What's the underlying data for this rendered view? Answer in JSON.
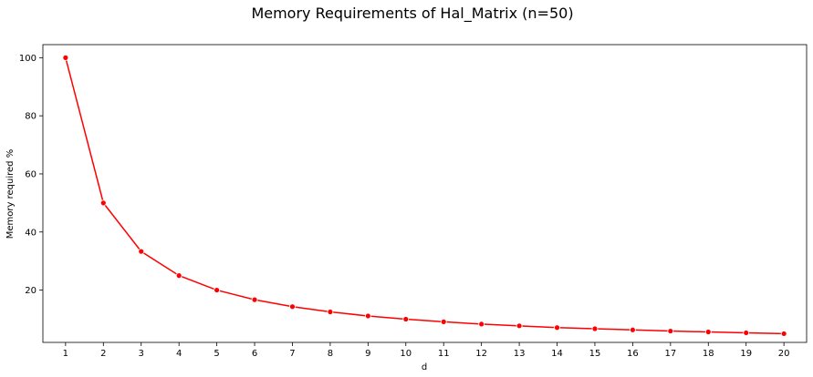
{
  "chart_data": {
    "type": "line",
    "title": "Memory Requirements of Hal_Matrix (n=50)",
    "xlabel": "d",
    "ylabel": "Memory required %",
    "x": [
      1,
      2,
      3,
      4,
      5,
      6,
      7,
      8,
      9,
      10,
      11,
      12,
      13,
      14,
      15,
      16,
      17,
      18,
      19,
      20
    ],
    "series": [
      {
        "values": [
          100,
          50,
          33.3,
          25,
          20,
          16.7,
          14.3,
          12.5,
          11.1,
          10,
          9.1,
          8.3,
          7.7,
          7.1,
          6.7,
          6.3,
          5.9,
          5.6,
          5.3,
          5.0
        ],
        "color": "#ff0000",
        "marker": "circle"
      }
    ],
    "xlim": [
      0.4,
      20.6
    ],
    "ylim": [
      2,
      104.5
    ],
    "yticks": [
      20,
      40,
      60,
      80,
      100
    ],
    "grid": false,
    "legend": "none"
  }
}
